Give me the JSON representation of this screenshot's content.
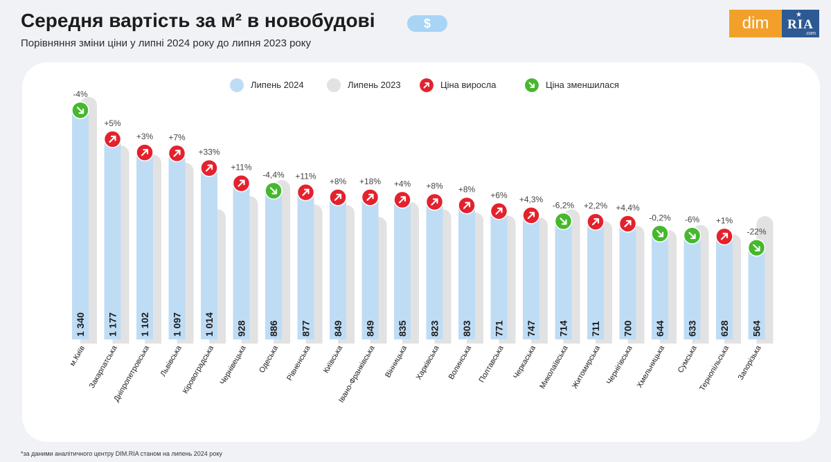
{
  "header": {
    "title": "Середня вартість за м² в новобудові",
    "badge": "$",
    "subtitle": "Порівняння зміни ціни у липні 2024 року до липня 2023 року"
  },
  "logo": {
    "left": "dim",
    "right": "RIA",
    "right_sub": ".com"
  },
  "legend": {
    "items": [
      {
        "label": "Липень 2024",
        "color": "#bfdcf5"
      },
      {
        "label": "Липень 2023",
        "color": "#e2e2e2"
      },
      {
        "label": "Ціна виросла",
        "color": "#e3222d",
        "icon": "arrow-up-right-icon"
      },
      {
        "label": "Ціна зменшилася",
        "color": "#45b82d",
        "icon": "arrow-down-right-icon"
      }
    ]
  },
  "footnote": "*за даними аналітичного центру DIM.RIA станом на липень 2024 року",
  "colors": {
    "bar_2024": "#bfdcf5",
    "bar_2023": "#e2e2e2",
    "up": "#e3222d",
    "down": "#45b82d"
  },
  "chart_data": {
    "type": "bar",
    "title": "Середня вартість за м² в новобудові",
    "categories": [
      "м.Київ",
      "Закарпатська",
      "Дніпропетровська",
      "Львівська",
      "Кіровоградська",
      "Чернівецька",
      "Одеська",
      "Рівненська",
      "Київська",
      "Івано-Франківська",
      "Вінницька",
      "Харківська",
      "Волинська",
      "Полтавська",
      "Черкаська",
      "Миколаївська",
      "Житомирська",
      "Чернігівська",
      "Хмельницька",
      "Сумська",
      "Тернопільська",
      "Запорізька"
    ],
    "series": [
      {
        "name": "Липень 2024",
        "values": [
          1340,
          1177,
          1102,
          1097,
          1014,
          928,
          886,
          877,
          849,
          849,
          835,
          823,
          803,
          771,
          747,
          714,
          711,
          700,
          644,
          633,
          628,
          564
        ]
      },
      {
        "name": "Липень 2023",
        "values": [
          1396,
          1121,
          1070,
          1025,
          762,
          836,
          927,
          790,
          786,
          719,
          803,
          762,
          744,
          727,
          716,
          761,
          696,
          670,
          645,
          673,
          622,
          723
        ]
      }
    ],
    "value_labels": [
      "1 340",
      "1 177",
      "1 102",
      "1 097",
      "1 014",
      "928",
      "886",
      "877",
      "849",
      "849",
      "835",
      "823",
      "803",
      "771",
      "747",
      "714",
      "711",
      "700",
      "644",
      "633",
      "628",
      "564"
    ],
    "changes": [
      "-4%",
      "+5%",
      "+3%",
      "+7%",
      "+33%",
      "+11%",
      "-4,4%",
      "+11%",
      "+8%",
      "+18%",
      "+4%",
      "+8%",
      "+8%",
      "+6%",
      "+4,3%",
      "-6,2%",
      "+2,2%",
      "+4,4%",
      "-0,2%",
      "-6%",
      "+1%",
      "-22%"
    ],
    "direction": [
      "down",
      "up",
      "up",
      "up",
      "up",
      "up",
      "down",
      "up",
      "up",
      "up",
      "up",
      "up",
      "up",
      "up",
      "up",
      "down",
      "up",
      "up",
      "down",
      "down",
      "up",
      "down"
    ],
    "ylim": [
      0,
      1400
    ],
    "grid": false,
    "legend_position": "top"
  }
}
